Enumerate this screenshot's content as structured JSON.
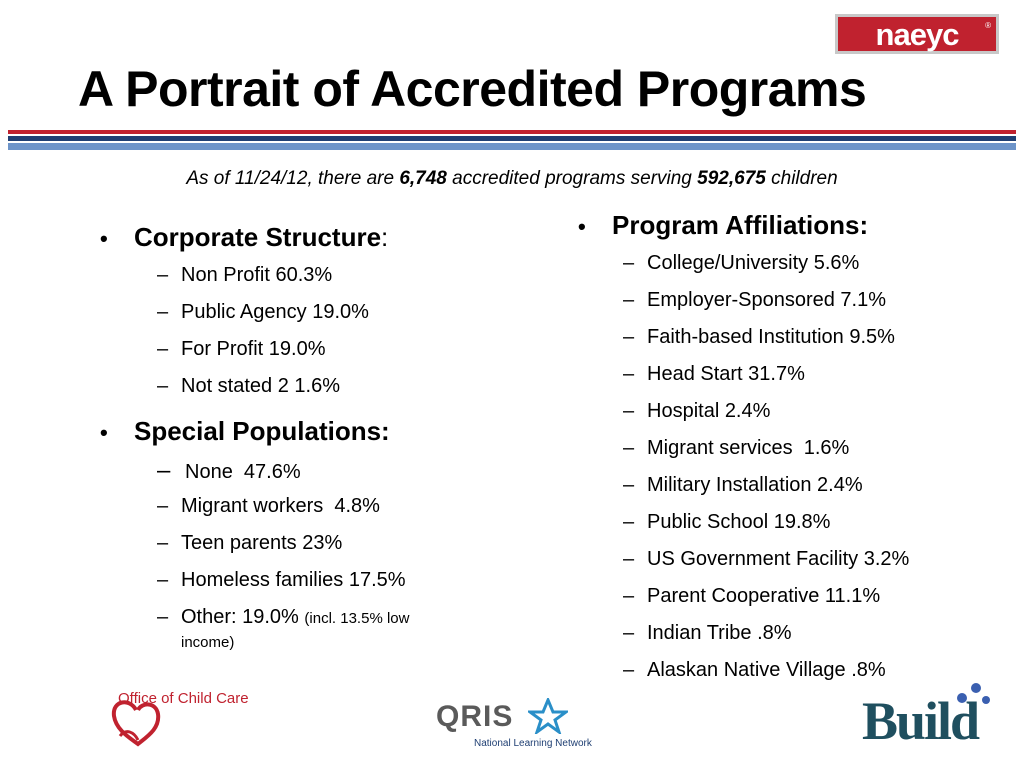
{
  "title": "A Portrait of Accredited Programs",
  "logo_naeyc": "naeyc",
  "subtitle": {
    "part1": "As of 11/24/12, there are ",
    "programs": "6,748",
    "part2": " accredited programs serving ",
    "children": "592,675",
    "part3": " children"
  },
  "left": {
    "corporate_heading": "Corporate Structure",
    "corporate_colon": ":",
    "corporate_items": [
      "Non Profit 60.3%",
      "Public Agency 19.0%",
      "For Profit 19.0%",
      "Not stated 2 1.6%"
    ],
    "special_heading": "Special Populations:",
    "special_items": [
      "None  47.6%",
      "Migrant workers  4.8%",
      "Teen parents 23%",
      "Homeless families 17.5%"
    ],
    "other_main": "Other: 19.0% ",
    "other_note": "(incl. 13.5% low income)"
  },
  "right": {
    "heading": "Program Affiliations:",
    "items": [
      "College/University 5.6%",
      "Employer-Sponsored 7.1%",
      "Faith-based Institution 9.5%",
      "Head Start 31.7%",
      "Hospital 2.4%",
      "Migrant services  1.6%",
      "Military Installation 2.4%",
      "Public School 19.8%",
      "US Government Facility 3.2%",
      "Parent Cooperative 11.1%",
      "Indian Tribe .8%",
      "Alaskan Native Village .8%"
    ]
  },
  "logos": {
    "occ": "Office of Child Care",
    "qris": "QRIS",
    "qris_sub": "National Learning Network",
    "build": "Build"
  },
  "colors": {
    "brand_red": "#c0222f",
    "navy": "#1f3f73",
    "light_blue": "#6d94c9",
    "build_teal": "#1f4f5f"
  }
}
